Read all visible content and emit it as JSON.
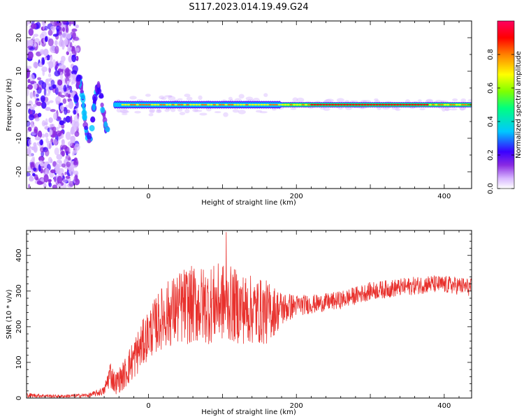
{
  "figure": {
    "title": "S117.2023.014.19.49.G24"
  },
  "colors": {
    "snr_line": "#e8302c",
    "axis": "#000000",
    "background": "#ffffff",
    "colormap": [
      "#ffffff",
      "#d8b8ff",
      "#8a2be2",
      "#3a00ff",
      "#00c8ff",
      "#00ff80",
      "#80ff00",
      "#ffff00",
      "#ff8000",
      "#ff0000",
      "#ff0060"
    ]
  },
  "chart_data": [
    {
      "type": "heatmap",
      "description_of_marks": "spectrogram of normalized spectral amplitude",
      "title": "",
      "xlabel": "Height of straight line (km)",
      "ylabel": "Frequency (Hz)",
      "xlim": [
        -165,
        437
      ],
      "ylim": [
        -25,
        25
      ],
      "xticks": [
        0,
        200,
        400
      ],
      "yticks": [
        -20,
        -10,
        0,
        10,
        20
      ],
      "colorbar": {
        "label": "Normalized spectral amplitude",
        "range": [
          0.0,
          1.0
        ],
        "ticks": [
          "0.0",
          "0.2",
          "0.4",
          "0.6",
          "0.8"
        ],
        "tick_values": [
          0.0,
          0.2,
          0.4,
          0.6,
          0.8
        ]
      },
      "features": {
        "noise_region_x": [
          -165,
          -95
        ],
        "dispersive_tail_x": [
          -100,
          -55
        ],
        "carrier_line_x": [
          -45,
          437
        ],
        "carrier_frequency": 0
      }
    },
    {
      "type": "line",
      "title": "",
      "xlabel": "Height of straight line (km)",
      "ylabel": "SNR (10 * v/v)",
      "xlim": [
        -165,
        437
      ],
      "ylim": [
        0,
        470
      ],
      "xticks": [
        0,
        200,
        400
      ],
      "yticks": [
        0,
        100,
        200,
        300,
        400
      ],
      "x_knots": [
        -165,
        -120,
        -80,
        -60,
        -52,
        -45,
        -35,
        -20,
        0,
        20,
        50,
        80,
        100,
        130,
        160,
        180,
        200,
        230,
        260,
        300,
        340,
        380,
        420,
        437
      ],
      "y_knots": [
        8,
        5,
        8,
        20,
        70,
        40,
        60,
        110,
        180,
        230,
        260,
        260,
        270,
        250,
        240,
        250,
        260,
        265,
        275,
        300,
        310,
        320,
        315,
        310
      ],
      "spread_knots": [
        6,
        4,
        6,
        12,
        40,
        30,
        40,
        60,
        70,
        90,
        110,
        110,
        110,
        100,
        90,
        50,
        30,
        25,
        25,
        25,
        25,
        25,
        25,
        25
      ],
      "notable_peak": {
        "x": 105,
        "y": 465
      }
    }
  ]
}
